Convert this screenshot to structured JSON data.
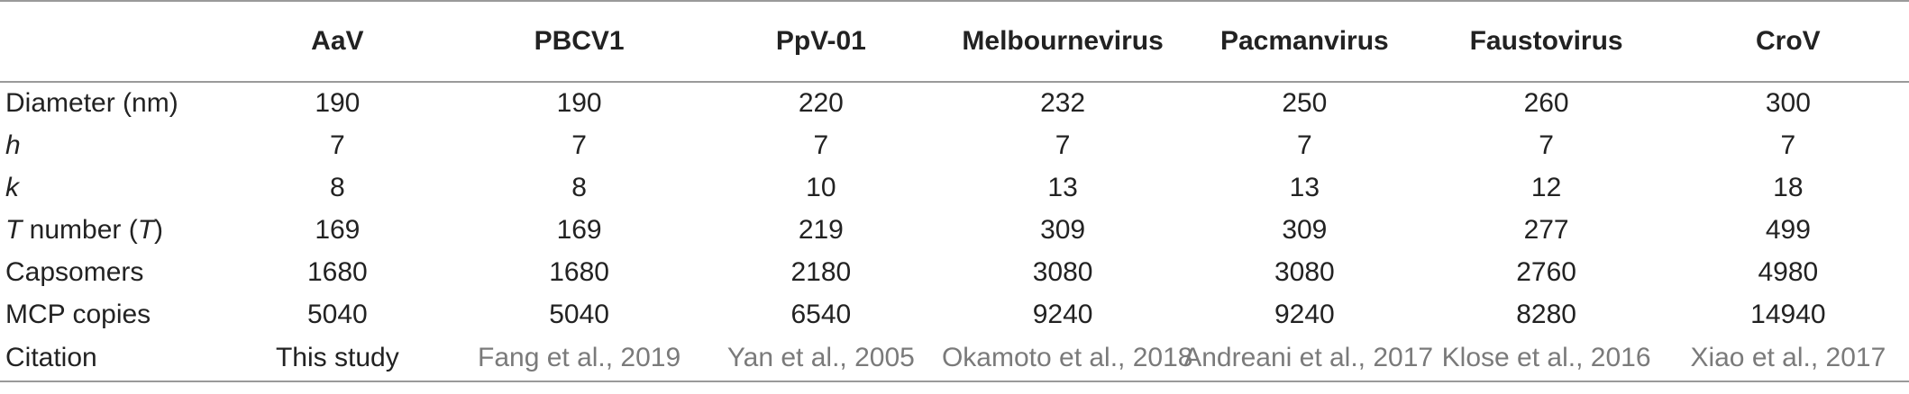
{
  "table": {
    "columns": [
      "AaV",
      "PBCV1",
      "PpV-01",
      "Melbournevirus",
      "Pacmanvirus",
      "Faustovirus",
      "CroV"
    ],
    "rows": [
      {
        "label": "Diameter (nm)",
        "label_prefix": "",
        "label_rest": "Diameter (nm)",
        "values": [
          "190",
          "190",
          "220",
          "232",
          "250",
          "260",
          "300"
        ]
      },
      {
        "label": "h",
        "label_prefix": "h",
        "label_rest": "",
        "values": [
          "7",
          "7",
          "7",
          "7",
          "7",
          "7",
          "7"
        ]
      },
      {
        "label": "k",
        "label_prefix": "k",
        "label_rest": "",
        "values": [
          "8",
          "8",
          "10",
          "13",
          "13",
          "12",
          "18"
        ]
      },
      {
        "label": "T number (T)",
        "label_prefix": "T",
        "label_rest": " number (",
        "label_suffix_italic": "T",
        "label_suffix_rest": ")",
        "values": [
          "169",
          "169",
          "219",
          "309",
          "309",
          "277",
          "499"
        ]
      },
      {
        "label": "Capsomers",
        "label_prefix": "",
        "label_rest": "Capsomers",
        "values": [
          "1680",
          "1680",
          "2180",
          "3080",
          "3080",
          "2760",
          "4980"
        ]
      },
      {
        "label": "MCP copies",
        "label_prefix": "",
        "label_rest": "MCP copies",
        "values": [
          "5040",
          "5040",
          "6540",
          "9240",
          "9240",
          "8280",
          "14940"
        ]
      },
      {
        "label": "Citation",
        "label_prefix": "",
        "label_rest": "Citation",
        "values": [
          "This study",
          "Fang et al., 2019",
          "Yan et al., 2005",
          "Okamoto et al., 2018",
          "Andreani et al., 2017",
          "Klose et al., 2016",
          "Xiao et al., 2017"
        ]
      }
    ],
    "colors": {
      "text": "#222222",
      "citation_link": "#7a7a7a",
      "rule": "#9a9a9a"
    }
  }
}
